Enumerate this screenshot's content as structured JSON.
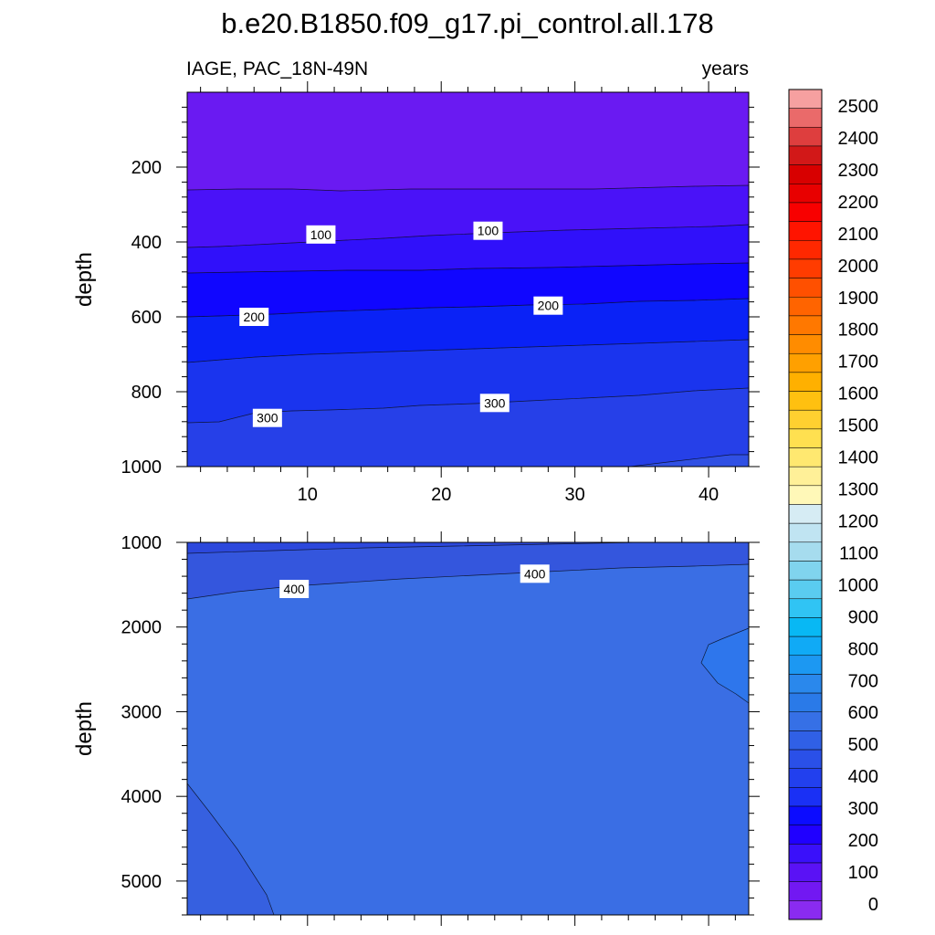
{
  "chart_data": {
    "type": "heatmap",
    "title": "b.e20.B1850.f09_g17.pi_control.all.178",
    "left_label": "IAGE, PAC_18N-49N",
    "right_label": "years",
    "colorbar": {
      "labels": [
        "0",
        "100",
        "200",
        "300",
        "400",
        "500",
        "600",
        "700",
        "800",
        "900",
        "1000",
        "1100",
        "1200",
        "1300",
        "1400",
        "1500",
        "1600",
        "1700",
        "1800",
        "1900",
        "2000",
        "2100",
        "2200",
        "2300",
        "2400",
        "2500"
      ],
      "colors": [
        "#8a2bf0",
        "#7218f2",
        "#5a12f5",
        "#3a10fa",
        "#2000ff",
        "#0c0cff",
        "#1a30f5",
        "#2240ee",
        "#2a50e8",
        "#3060e6",
        "#3670e6",
        "#2a7ae8",
        "#2a88ec",
        "#1c98f2",
        "#10aaf6",
        "#08b8f4",
        "#30c4f4",
        "#5accf0",
        "#80d4ee",
        "#a6dcee",
        "#c0e4f2",
        "#d6ecf4",
        "#fff8b8",
        "#fff098",
        "#ffe870",
        "#ffe050",
        "#ffd030",
        "#ffc010",
        "#ffb000",
        "#ffa000",
        "#ff8c00",
        "#ff7800",
        "#ff6400",
        "#ff5000",
        "#ff3c00",
        "#ff2800",
        "#ff1400",
        "#f80000",
        "#e80000",
        "#d80000",
        "#d21818",
        "#de3e3e",
        "#ea6a6a",
        "#f6a0a0"
      ]
    },
    "panels": [
      {
        "name": "upper",
        "xlim": [
          1,
          43
        ],
        "ylim": [
          1000,
          0
        ],
        "x_ticks": [
          "10",
          "20",
          "30",
          "40"
        ],
        "x_tick_values": [
          10,
          20,
          30,
          40
        ],
        "y_ticks": [
          "200",
          "400",
          "600",
          "800",
          "1000"
        ],
        "y_tick_values": [
          200,
          400,
          600,
          800,
          1000
        ],
        "ylabel": "depth",
        "contour_labels": [
          {
            "text": "100",
            "x": 11,
            "y": 380
          },
          {
            "text": "100",
            "x": 23.5,
            "y": 370
          },
          {
            "text": "200",
            "x": 6,
            "y": 600
          },
          {
            "text": "200",
            "x": 28,
            "y": 570
          },
          {
            "text": "300",
            "x": 7,
            "y": 870
          },
          {
            "text": "300",
            "x": 24,
            "y": 830
          }
        ]
      },
      {
        "name": "lower",
        "xlim": [
          1,
          43
        ],
        "ylim": [
          5400,
          1000
        ],
        "y_ticks": [
          "1000",
          "2000",
          "3000",
          "4000",
          "5000"
        ],
        "y_tick_values": [
          1000,
          2000,
          3000,
          4000,
          5000
        ],
        "ylabel": "depth",
        "contour_labels": [
          {
            "text": "400",
            "x": 9,
            "y": 1550
          },
          {
            "text": "400",
            "x": 27,
            "y": 1370
          }
        ]
      }
    ]
  }
}
